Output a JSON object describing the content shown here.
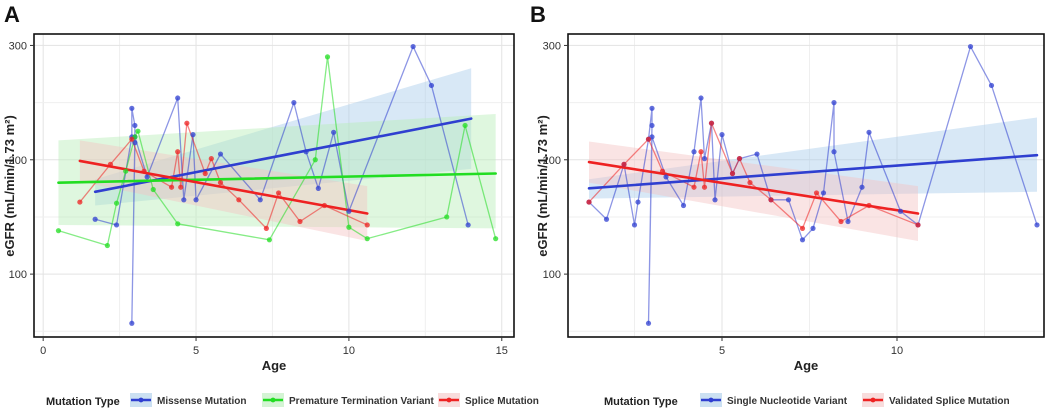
{
  "chart_data": [
    {
      "panel": "A",
      "type": "line",
      "xlabel": "Age",
      "ylabel": "eGFR (mL/min/1.73 m²)",
      "xlim": [
        -0.3,
        15.4
      ],
      "ylim": [
        45,
        310
      ],
      "x_ticks": [
        0,
        5,
        10,
        15
      ],
      "y_ticks": [
        100,
        200,
        300
      ],
      "grid": true,
      "legend_position": "bottom",
      "legend_title": "Mutation Type",
      "series": [
        {
          "name": "Missense Mutation",
          "color": "#2f3fd0",
          "band_color": "#a9cbea",
          "x": [
            1.7,
            2.4,
            2.9,
            2.9,
            3.0,
            3.0,
            2.9,
            3.0,
            3.4,
            4.4,
            4.6,
            4.9,
            5.0,
            5.8,
            7.1,
            8.2,
            8.6,
            9.0,
            9.5,
            10.0,
            12.1,
            12.7,
            13.9
          ],
          "y": [
            148,
            143,
            220,
            245,
            230,
            215,
            57,
            220,
            185,
            254,
            165,
            222,
            165,
            205,
            165,
            250,
            207,
            175,
            224,
            155,
            299,
            265,
            143
          ],
          "trend": {
            "x": [
              1.7,
              14.0
            ],
            "y": [
              172,
              236
            ]
          },
          "band": {
            "x": [
              1.7,
              14.0
            ],
            "upper": [
              183,
              280
            ],
            "lower": [
              160,
              192
            ]
          }
        },
        {
          "name": "Premature Termination Variant",
          "color": "#22dd22",
          "band_color": "#b8edb8",
          "x": [
            0.5,
            2.1,
            2.4,
            2.7,
            3.0,
            3.1,
            3.6,
            4.4,
            7.4,
            8.9,
            9.3,
            10.0,
            10.6,
            13.2,
            13.8,
            14.8
          ],
          "y": [
            138,
            125,
            162,
            190,
            220,
            225,
            174,
            144,
            130,
            200,
            290,
            141,
            131,
            150,
            230,
            131
          ],
          "trend": {
            "x": [
              0.5,
              14.8
            ],
            "y": [
              180,
              188
            ]
          },
          "band": {
            "x": [
              0.5,
              14.8
            ],
            "upper": [
              217,
              240
            ],
            "lower": [
              143,
              140
            ]
          }
        },
        {
          "name": "Splice Mutation",
          "color": "#ee2222",
          "band_color": "#f4c4c4",
          "x": [
            1.2,
            2.2,
            2.9,
            3.3,
            4.2,
            4.4,
            4.5,
            4.7,
            5.3,
            5.5,
            5.8,
            6.4,
            7.3,
            7.7,
            8.4,
            9.2,
            10.6
          ],
          "y": [
            163,
            196,
            218,
            190,
            176,
            207,
            176,
            232,
            188,
            201,
            180,
            165,
            140,
            171,
            146,
            160,
            143
          ],
          "trend": {
            "x": [
              1.2,
              10.6
            ],
            "y": [
              199,
              153
            ]
          },
          "band": {
            "x": [
              1.2,
              10.6
            ],
            "upper": [
              217,
              177
            ],
            "lower": [
              181,
              129
            ]
          }
        }
      ]
    },
    {
      "panel": "B",
      "type": "line",
      "xlabel": "Age",
      "ylabel": "eGFR (mL/min/1.73 m²)",
      "xlim": [
        0.6,
        14.2
      ],
      "ylim": [
        45,
        310
      ],
      "x_ticks": [
        5,
        10
      ],
      "y_ticks": [
        100,
        200,
        300
      ],
      "grid": true,
      "legend_position": "bottom",
      "legend_title": "Mutation Type",
      "series": [
        {
          "name": "Single Nucleotide Variant",
          "color": "#2f3fd0",
          "band_color": "#a9cbea",
          "x": [
            1.2,
            1.7,
            2.2,
            2.5,
            2.6,
            2.9,
            3.0,
            3.0,
            2.9,
            3.0,
            3.4,
            3.9,
            4.2,
            4.4,
            4.5,
            4.7,
            4.8,
            5.0,
            5.3,
            5.5,
            6.0,
            6.4,
            6.9,
            7.3,
            7.6,
            7.9,
            8.2,
            8.2,
            8.6,
            9.0,
            9.2,
            10.1,
            10.6,
            12.1,
            12.7,
            14.0
          ],
          "y": [
            163,
            148,
            196,
            143,
            163,
            218,
            245,
            230,
            57,
            220,
            185,
            160,
            207,
            254,
            201,
            232,
            165,
            222,
            188,
            201,
            205,
            165,
            165,
            130,
            140,
            171,
            250,
            207,
            146,
            176,
            224,
            155,
            143,
            299,
            265,
            143
          ],
          "trend": {
            "x": [
              1.2,
              14.0
            ],
            "y": [
              175,
              204
            ]
          },
          "band": {
            "x": [
              1.2,
              14.0
            ],
            "upper": [
              183,
              237
            ],
            "lower": [
              166,
              172
            ]
          }
        },
        {
          "name": "Validated Splice Mutation",
          "color": "#ee2222",
          "band_color": "#f4c4c4",
          "x": [
            1.2,
            2.2,
            2.9,
            3.3,
            4.2,
            4.4,
            4.5,
            4.7,
            5.3,
            5.5,
            5.8,
            6.4,
            7.3,
            7.7,
            8.4,
            9.2,
            10.6
          ],
          "y": [
            163,
            196,
            218,
            190,
            176,
            207,
            176,
            232,
            188,
            201,
            180,
            165,
            140,
            171,
            146,
            160,
            143
          ],
          "trend": {
            "x": [
              1.2,
              10.6
            ],
            "y": [
              198,
              153
            ]
          },
          "band": {
            "x": [
              1.2,
              10.6
            ],
            "upper": [
              216,
              177
            ],
            "lower": [
              180,
              129
            ]
          }
        }
      ]
    }
  ]
}
